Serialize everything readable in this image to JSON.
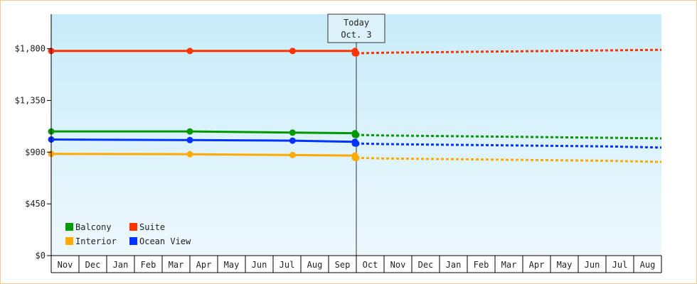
{
  "chart_data": {
    "type": "line",
    "x_labels": [
      "Nov",
      "Dec",
      "Jan",
      "Feb",
      "Mar",
      "Apr",
      "May",
      "Jun",
      "Jul",
      "Aug",
      "Sep",
      "Oct",
      "Nov",
      "Dec",
      "Jan",
      "Feb",
      "Mar",
      "Apr",
      "May",
      "Jun",
      "Jul",
      "Aug"
    ],
    "y_ticks": [
      {
        "value": 0,
        "label": "$0"
      },
      {
        "value": 450,
        "label": "$450"
      },
      {
        "value": 900,
        "label": "$900"
      },
      {
        "value": 1350,
        "label": "$1,350"
      },
      {
        "value": 1800,
        "label": "$1,800"
      }
    ],
    "ylim": [
      0,
      2100
    ],
    "xlim": [
      0,
      22
    ],
    "today": {
      "line1": "Today",
      "line2": "Oct. 3",
      "x": 11.0
    },
    "series": [
      {
        "name": "Suite",
        "color": "#ff3300",
        "points": [
          [
            0,
            1780
          ],
          [
            5,
            1780
          ],
          [
            8.7,
            1780
          ],
          [
            10.95,
            1780
          ],
          [
            11.0,
            1760
          ]
        ],
        "markers": [
          [
            0,
            1780
          ],
          [
            5,
            1780
          ],
          [
            8.7,
            1780
          ],
          [
            10.95,
            1780
          ],
          [
            10.95,
            1760
          ],
          [
            11.0,
            1760
          ]
        ],
        "forecast": [
          [
            11.0,
            1760
          ],
          [
            12,
            1765
          ],
          [
            14,
            1770
          ],
          [
            16,
            1775
          ],
          [
            18,
            1780
          ],
          [
            20,
            1785
          ],
          [
            22,
            1790
          ]
        ]
      },
      {
        "name": "Balcony",
        "color": "#009900",
        "points": [
          [
            0,
            1080
          ],
          [
            5,
            1080
          ],
          [
            8.7,
            1070
          ],
          [
            10.95,
            1065
          ],
          [
            11.0,
            1050
          ]
        ],
        "markers": [
          [
            0,
            1080
          ],
          [
            5,
            1080
          ],
          [
            8.7,
            1070
          ],
          [
            10.95,
            1065
          ],
          [
            10.95,
            1050
          ],
          [
            11.0,
            1050
          ]
        ],
        "forecast": [
          [
            11.0,
            1050
          ],
          [
            12,
            1045
          ],
          [
            14,
            1040
          ],
          [
            16,
            1035
          ],
          [
            18,
            1030
          ],
          [
            20,
            1025
          ],
          [
            22,
            1020
          ]
        ]
      },
      {
        "name": "Ocean View",
        "color": "#0033ff",
        "points": [
          [
            0,
            1010
          ],
          [
            5,
            1005
          ],
          [
            8.7,
            1000
          ],
          [
            10.95,
            990
          ],
          [
            11.0,
            975
          ]
        ],
        "markers": [
          [
            0,
            1010
          ],
          [
            5,
            1005
          ],
          [
            8.7,
            1000
          ],
          [
            10.95,
            990
          ],
          [
            10.95,
            975
          ],
          [
            11.0,
            975
          ]
        ],
        "forecast": [
          [
            11.0,
            975
          ],
          [
            12,
            970
          ],
          [
            14,
            965
          ],
          [
            16,
            960
          ],
          [
            18,
            955
          ],
          [
            20,
            950
          ],
          [
            22,
            940
          ]
        ]
      },
      {
        "name": "Interior",
        "color": "#ffaa00",
        "points": [
          [
            0,
            885
          ],
          [
            5,
            882
          ],
          [
            8.7,
            875
          ],
          [
            10.95,
            870
          ],
          [
            11.0,
            850
          ]
        ],
        "markers": [
          [
            0,
            885
          ],
          [
            5,
            882
          ],
          [
            8.7,
            875
          ],
          [
            10.95,
            870
          ],
          [
            10.95,
            850
          ],
          [
            11.0,
            850
          ]
        ],
        "forecast": [
          [
            11.0,
            850
          ],
          [
            12,
            845
          ],
          [
            14,
            840
          ],
          [
            16,
            835
          ],
          [
            18,
            830
          ],
          [
            20,
            825
          ],
          [
            22,
            815
          ]
        ]
      }
    ],
    "legend": [
      {
        "name": "Balcony",
        "color": "#009900"
      },
      {
        "name": "Suite",
        "color": "#ff3300"
      },
      {
        "name": "Interior",
        "color": "#ffaa00"
      },
      {
        "name": "Ocean View",
        "color": "#0033ff"
      }
    ],
    "legend_position": "bottom-left",
    "grid": false
  }
}
